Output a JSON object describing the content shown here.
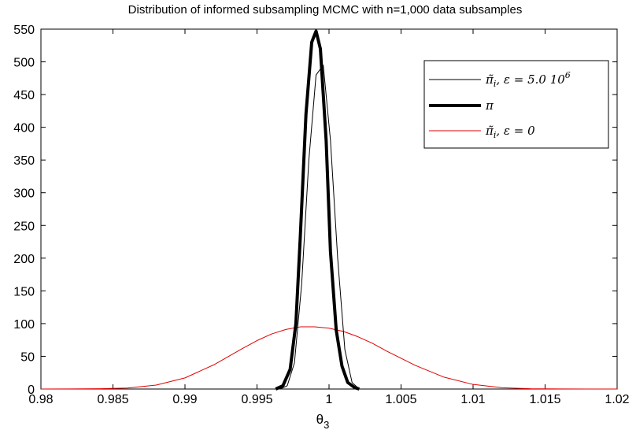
{
  "chart_data": {
    "type": "line",
    "title": "Distribution of informed subsampling MCMC with n=1,000 data subsamples",
    "xlabel": "θ",
    "xlabel_sub": "3",
    "ylabel": "",
    "xlim": [
      0.98,
      1.02
    ],
    "ylim": [
      0,
      550
    ],
    "xticks": [
      0.98,
      0.985,
      0.99,
      0.995,
      1.0,
      1.005,
      1.01,
      1.015,
      1.02
    ],
    "xtick_labels": [
      "0.98",
      "0.985",
      "0.99",
      "0.995",
      "1",
      "1.005",
      "1.01",
      "1.015",
      "1.02"
    ],
    "yticks": [
      0,
      50,
      100,
      150,
      200,
      250,
      300,
      350,
      400,
      450,
      500,
      550
    ],
    "ytick_labels": [
      "0",
      "50",
      "100",
      "150",
      "200",
      "250",
      "300",
      "350",
      "400",
      "450",
      "500",
      "550"
    ],
    "grid": false,
    "legend_position": "top-right",
    "series": [
      {
        "name": "π̃_i, ε = 5.0 10^6",
        "color": "#000000",
        "style": "thin",
        "x": [
          0.9966,
          0.9971,
          0.9976,
          0.9981,
          0.9986,
          0.9991,
          0.9996,
          1.0001,
          1.0006,
          1.0011,
          1.0016,
          1.0021
        ],
        "y": [
          0,
          5,
          40,
          160,
          350,
          480,
          495,
          380,
          200,
          60,
          10,
          0
        ]
      },
      {
        "name": "π",
        "color": "#000000",
        "style": "thick",
        "x": [
          0.9963,
          0.9968,
          0.9973,
          0.9977,
          0.998,
          0.9984,
          0.9988,
          0.9991,
          0.9994,
          0.9998,
          1.0001,
          1.0005,
          1.0009,
          1.0013,
          1.0018,
          1.0021
        ],
        "y": [
          0,
          5,
          30,
          100,
          230,
          420,
          530,
          547,
          520,
          380,
          210,
          90,
          35,
          10,
          2,
          0
        ]
      },
      {
        "name": "π̃_i, ε = 0",
        "color": "#e00000",
        "style": "thin",
        "x": [
          0.98,
          0.982,
          0.984,
          0.986,
          0.988,
          0.99,
          0.992,
          0.994,
          0.995,
          0.996,
          0.997,
          0.998,
          0.999,
          1.0,
          1.001,
          1.002,
          1.003,
          1.004,
          1.006,
          1.008,
          1.01,
          1.012,
          1.014,
          1.016,
          1.018,
          1.02
        ],
        "y": [
          0,
          0.1,
          0.4,
          1.5,
          6,
          17,
          37,
          62,
          74,
          84,
          91,
          95,
          95,
          93,
          88,
          80,
          70,
          58,
          36,
          18,
          7,
          2,
          0.5,
          0.1,
          0,
          0
        ]
      }
    ],
    "legend_entries": [
      {
        "label": "π̃",
        "sub": "i",
        "rest": ", ε = 5.0 10",
        "sup": "6"
      },
      {
        "label": "π",
        "sub": "",
        "rest": "",
        "sup": ""
      },
      {
        "label": "π̃",
        "sub": "i",
        "rest": ", ε = 0",
        "sup": ""
      }
    ]
  }
}
